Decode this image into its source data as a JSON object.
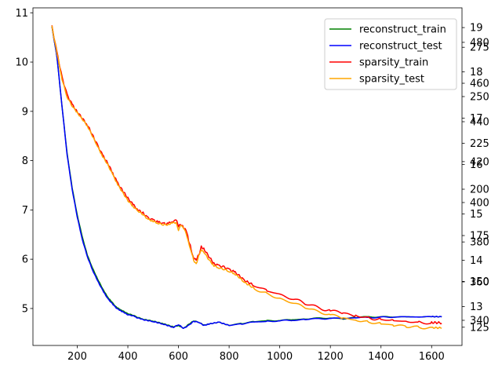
{
  "chart_data": {
    "type": "line",
    "title": "",
    "xlabel": "",
    "ylabel": "",
    "xlim": [
      25,
      1720
    ],
    "ylim": [
      4.25,
      11.1
    ],
    "grid": false,
    "legend_position": "top-right",
    "x_ticks": [
      200,
      400,
      600,
      800,
      1000,
      1200,
      1400,
      1600
    ],
    "y_ticks": [
      5,
      6,
      7,
      8,
      9,
      10,
      11
    ],
    "right_axis_labels": [
      {
        "label": "19",
        "y": 10.7
      },
      {
        "label": "480",
        "y": 10.4
      },
      {
        "label": "275",
        "y": 10.3
      },
      {
        "label": "18",
        "y": 9.8
      },
      {
        "label": "460",
        "y": 9.57
      },
      {
        "label": "250",
        "y": 9.3
      },
      {
        "label": "17",
        "y": 8.86
      },
      {
        "label": "440",
        "y": 8.79
      },
      {
        "label": "225",
        "y": 8.35
      },
      {
        "label": "420",
        "y": 7.98
      },
      {
        "label": "16",
        "y": 7.92
      },
      {
        "label": "200",
        "y": 7.42
      },
      {
        "label": "400",
        "y": 7.15
      },
      {
        "label": "15",
        "y": 6.92
      },
      {
        "label": "175",
        "y": 6.48
      },
      {
        "label": "380",
        "y": 6.35
      },
      {
        "label": "14",
        "y": 5.98
      },
      {
        "label": "360",
        "y": 5.54
      },
      {
        "label": "150",
        "y": 5.55
      },
      {
        "label": "13",
        "y": 5.04
      },
      {
        "label": "340",
        "y": 4.76
      },
      {
        "label": "125",
        "y": 4.62
      }
    ],
    "series": [
      {
        "name": "reconstruct_train",
        "color": "#008000",
        "x": [
          100,
          120,
          140,
          160,
          180,
          200,
          220,
          240,
          260,
          280,
          300,
          325,
          350,
          375,
          400,
          430,
          460,
          500,
          540,
          580,
          600,
          620,
          640,
          660,
          680,
          700,
          720,
          760,
          800,
          850,
          900,
          950,
          1000,
          1050,
          1100,
          1150,
          1200,
          1250,
          1300,
          1350,
          1400,
          1450,
          1500,
          1550,
          1600,
          1640
        ],
        "y": [
          10.72,
          10.1,
          9.1,
          8.15,
          7.45,
          6.9,
          6.45,
          6.08,
          5.82,
          5.6,
          5.4,
          5.2,
          5.05,
          4.96,
          4.9,
          4.84,
          4.78,
          4.74,
          4.69,
          4.63,
          4.66,
          4.6,
          4.68,
          4.75,
          4.72,
          4.66,
          4.68,
          4.72,
          4.66,
          4.7,
          4.73,
          4.75,
          4.76,
          4.77,
          4.79,
          4.8,
          4.81,
          4.79,
          4.82,
          4.83,
          4.83,
          4.83,
          4.83,
          4.83,
          4.83,
          4.83
        ]
      },
      {
        "name": "reconstruct_test",
        "color": "#0000ff",
        "x": [
          100,
          120,
          140,
          160,
          180,
          200,
          220,
          240,
          260,
          280,
          300,
          325,
          350,
          375,
          400,
          430,
          460,
          500,
          540,
          580,
          600,
          620,
          640,
          660,
          680,
          700,
          720,
          760,
          800,
          850,
          900,
          950,
          1000,
          1050,
          1100,
          1150,
          1200,
          1250,
          1300,
          1350,
          1400,
          1450,
          1500,
          1550,
          1600,
          1640
        ],
        "y": [
          10.72,
          10.1,
          9.1,
          8.12,
          7.42,
          6.86,
          6.4,
          6.05,
          5.78,
          5.56,
          5.37,
          5.17,
          5.03,
          4.94,
          4.88,
          4.83,
          4.77,
          4.73,
          4.68,
          4.62,
          4.68,
          4.6,
          4.66,
          4.74,
          4.72,
          4.65,
          4.68,
          4.72,
          4.66,
          4.69,
          4.72,
          4.74,
          4.75,
          4.76,
          4.78,
          4.79,
          4.8,
          4.8,
          4.81,
          4.82,
          4.82,
          4.83,
          4.83,
          4.83,
          4.83,
          4.83
        ]
      },
      {
        "name": "sparsity_train",
        "color": "#ff0000",
        "x": [
          100,
          120,
          140,
          160,
          180,
          200,
          240,
          280,
          300,
          320,
          340,
          360,
          380,
          400,
          420,
          440,
          460,
          480,
          500,
          520,
          540,
          560,
          575,
          590,
          600,
          610,
          620,
          630,
          640,
          650,
          660,
          670,
          680,
          690,
          700,
          720,
          740,
          760,
          780,
          800,
          820,
          840,
          860,
          900,
          950,
          1000,
          1050,
          1100,
          1150,
          1200,
          1250,
          1300,
          1350,
          1400,
          1450,
          1500,
          1550,
          1600,
          1640
        ],
        "y": [
          10.72,
          10.2,
          9.7,
          9.35,
          9.15,
          9.0,
          8.72,
          8.3,
          8.1,
          7.95,
          7.75,
          7.55,
          7.4,
          7.25,
          7.12,
          7.0,
          6.93,
          6.82,
          6.78,
          6.74,
          6.72,
          6.72,
          6.76,
          6.8,
          6.65,
          6.72,
          6.66,
          6.58,
          6.38,
          6.2,
          6.02,
          5.96,
          6.1,
          6.24,
          6.2,
          6.04,
          5.9,
          5.86,
          5.84,
          5.8,
          5.76,
          5.68,
          5.58,
          5.46,
          5.36,
          5.28,
          5.2,
          5.1,
          5.02,
          4.96,
          4.9,
          4.86,
          4.82,
          4.78,
          4.76,
          4.74,
          4.72,
          4.7,
          4.7
        ]
      },
      {
        "name": "sparsity_test",
        "color": "#ffa500",
        "x": [
          100,
          120,
          140,
          160,
          180,
          200,
          240,
          280,
          300,
          320,
          340,
          360,
          380,
          400,
          420,
          440,
          460,
          480,
          500,
          520,
          540,
          560,
          575,
          590,
          600,
          610,
          620,
          630,
          640,
          650,
          660,
          670,
          680,
          690,
          700,
          720,
          740,
          760,
          780,
          800,
          820,
          840,
          860,
          900,
          950,
          1000,
          1050,
          1100,
          1150,
          1200,
          1250,
          1300,
          1350,
          1400,
          1450,
          1500,
          1550,
          1600,
          1640
        ],
        "y": [
          10.72,
          10.18,
          9.66,
          9.3,
          9.12,
          8.98,
          8.7,
          8.28,
          8.08,
          7.92,
          7.72,
          7.52,
          7.36,
          7.2,
          7.08,
          6.98,
          6.9,
          6.8,
          6.76,
          6.72,
          6.7,
          6.7,
          6.73,
          6.76,
          6.6,
          6.68,
          6.62,
          6.54,
          6.34,
          6.15,
          5.98,
          5.92,
          6.06,
          6.18,
          6.14,
          5.98,
          5.86,
          5.82,
          5.8,
          5.76,
          5.72,
          5.64,
          5.54,
          5.4,
          5.3,
          5.2,
          5.12,
          5.02,
          4.94,
          4.87,
          4.81,
          4.77,
          4.73,
          4.69,
          4.66,
          4.64,
          4.62,
          4.6,
          4.6
        ]
      }
    ]
  }
}
